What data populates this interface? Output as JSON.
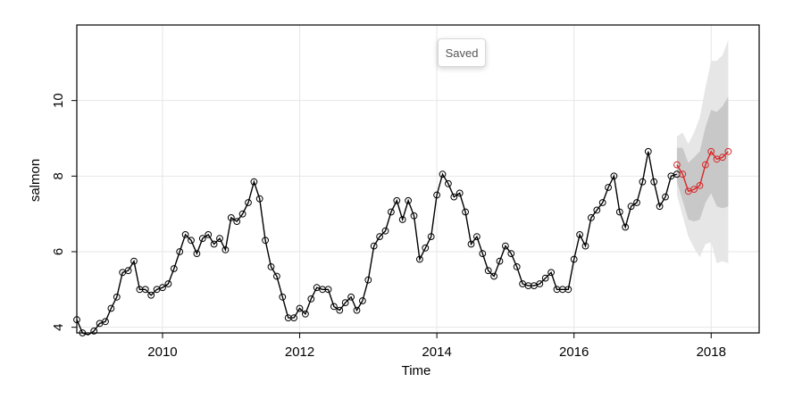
{
  "toast": {
    "text": "Saved"
  },
  "colors": {
    "history": "#000000",
    "forecast": "#d62728",
    "band80": "#c8c8c8",
    "band95": "#e6e6e6",
    "grid": "#e6e6e6"
  },
  "chart_data": {
    "type": "line",
    "title": "",
    "xlabel": "Time",
    "ylabel": "salmon",
    "xlim": [
      2008.75,
      2018.7
    ],
    "ylim": [
      3.85,
      12.0
    ],
    "xticks": [
      2010,
      2012,
      2014,
      2016,
      2018
    ],
    "xtick_labels": [
      "2010",
      "2012",
      "2014",
      "2016",
      "2018"
    ],
    "yticks": [
      4,
      6,
      8,
      10
    ],
    "ytick_labels": [
      "4",
      "6",
      "8",
      "10"
    ],
    "grid": true,
    "series": [
      {
        "role": "history",
        "start": 2008.75,
        "step": 0.08333,
        "values": [
          4.2,
          3.85,
          3.8,
          3.9,
          4.1,
          4.15,
          4.5,
          4.8,
          5.45,
          5.5,
          5.75,
          5.0,
          5.0,
          4.85,
          5.0,
          5.05,
          5.15,
          5.55,
          6.0,
          6.45,
          6.3,
          5.95,
          6.35,
          6.45,
          6.2,
          6.35,
          6.05,
          6.9,
          6.8,
          7.0,
          7.3,
          7.85,
          7.4,
          6.3,
          5.6,
          5.35,
          4.8,
          4.25,
          4.25,
          4.5,
          4.35,
          4.75,
          5.05,
          5.0,
          5.0,
          4.55,
          4.45,
          4.65,
          4.8,
          4.45,
          4.7,
          5.25,
          6.15,
          6.4,
          6.55,
          7.05,
          7.35,
          6.85,
          7.35,
          6.95,
          5.8,
          6.1,
          6.4,
          7.5,
          8.05,
          7.8,
          7.45,
          7.55,
          7.05,
          6.2,
          6.4,
          5.95,
          5.5,
          5.35,
          5.75,
          6.15,
          5.95,
          5.6,
          5.15,
          5.1,
          5.1,
          5.15,
          5.3,
          5.45,
          5.0,
          5.0,
          5.0,
          5.8,
          6.45,
          6.15,
          6.9,
          7.1,
          7.3,
          7.7,
          8.0,
          7.05,
          6.65,
          7.2,
          7.3,
          7.85,
          8.65,
          7.85,
          7.2,
          7.45,
          8.0,
          8.05
        ]
      },
      {
        "role": "forecast",
        "start": 2017.5,
        "step": 0.08333,
        "values": [
          8.3,
          8.05,
          7.6,
          7.65,
          7.75,
          8.3,
          8.65,
          8.45,
          8.5,
          8.65
        ],
        "lo80": [
          7.85,
          7.35,
          6.85,
          6.8,
          6.85,
          7.3,
          7.55,
          7.2,
          7.15,
          7.2
        ],
        "hi80": [
          8.75,
          8.75,
          8.35,
          8.5,
          8.65,
          9.3,
          9.75,
          9.7,
          9.85,
          10.1
        ],
        "lo95": [
          7.5,
          6.95,
          6.4,
          6.1,
          5.85,
          6.2,
          6.25,
          5.7,
          5.75,
          5.7
        ],
        "hi95": [
          9.05,
          9.15,
          8.85,
          9.15,
          9.55,
          10.35,
          11.05,
          11.05,
          11.2,
          11.6
        ]
      }
    ]
  }
}
